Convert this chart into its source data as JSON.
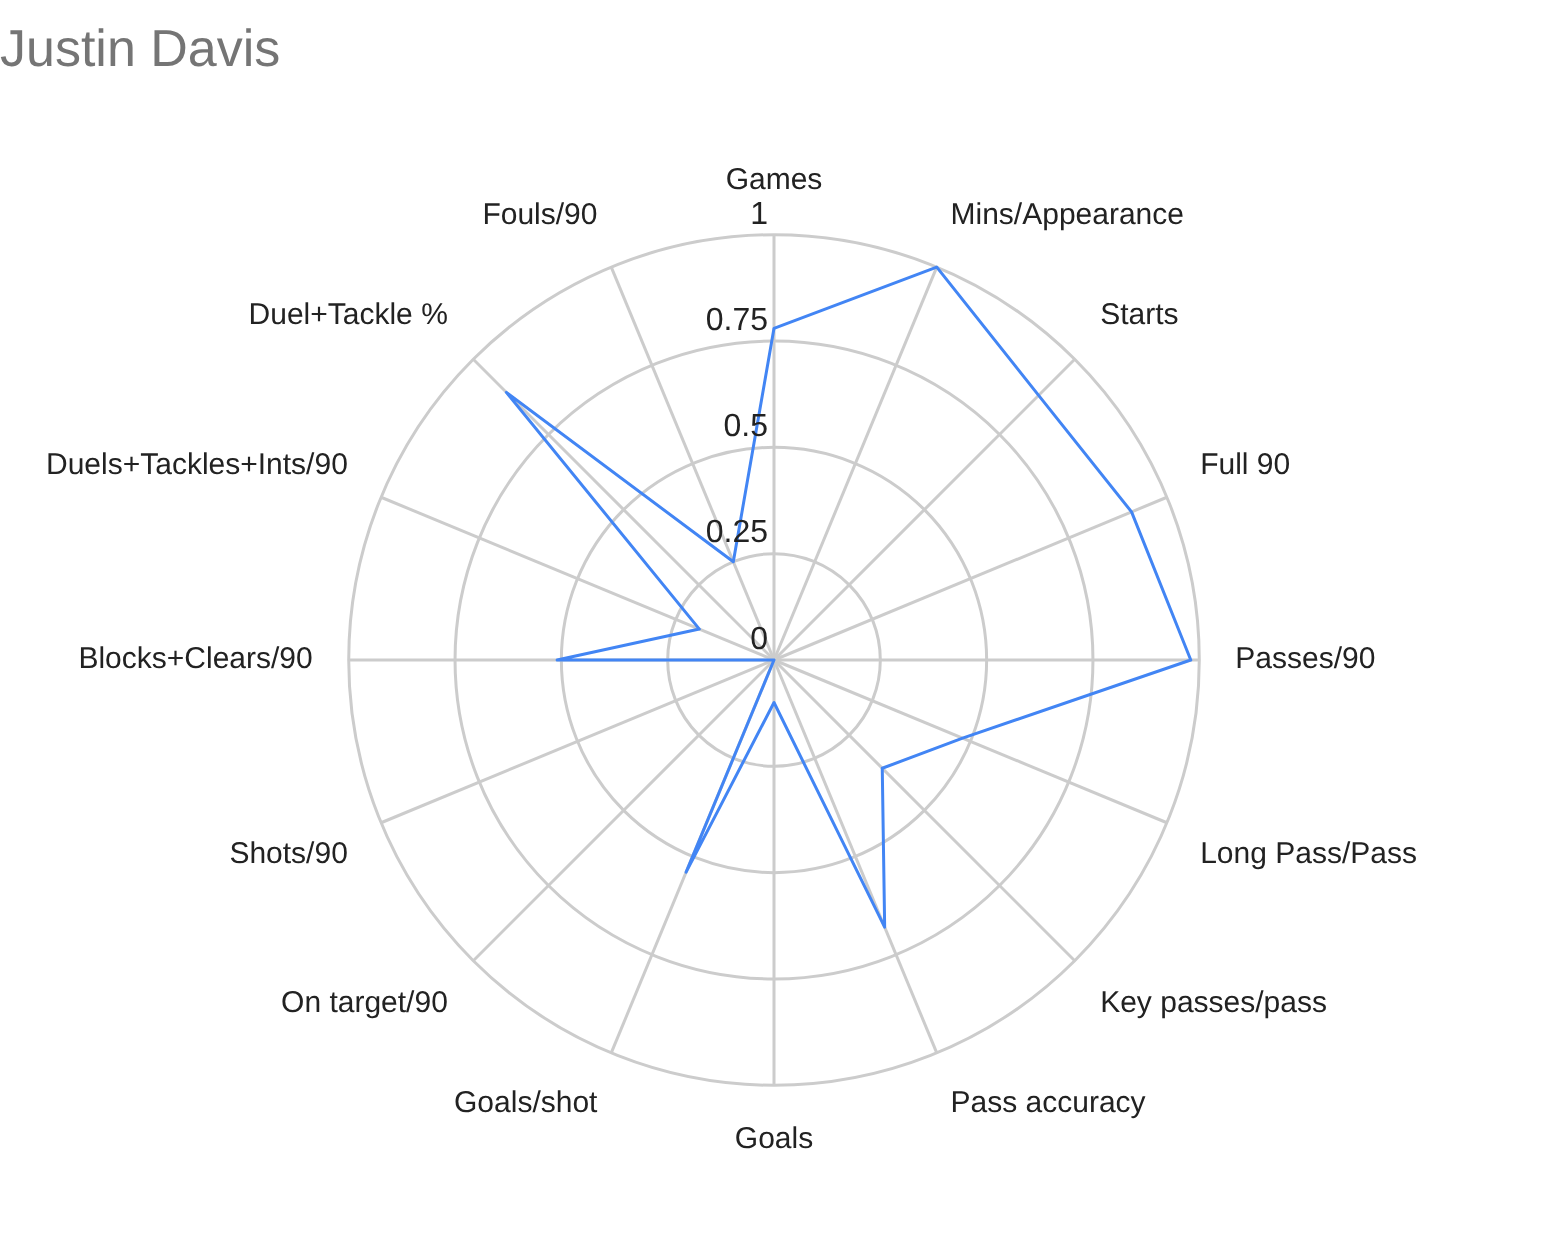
{
  "chart_data": {
    "type": "radar",
    "title": "Justin Davis",
    "categories": [
      "Games",
      "Mins/Appearance",
      "Starts",
      "Full 90",
      "Passes/90",
      "Long Pass/Pass",
      "Key passes/pass",
      "Pass accuracy",
      "Goals",
      "Goals/shot",
      "On target/90",
      "Shots/90",
      "Blocks+Clears/90",
      "Duels+Tackles+Ints/90",
      "Duel+Tackle %",
      "Fouls/90"
    ],
    "series": [
      {
        "color": "#4285f4",
        "values": [
          0.78,
          1.0,
          0.88,
          0.91,
          0.98,
          0.48,
          0.36,
          0.68,
          0.1,
          0.54,
          0,
          0,
          0.51,
          0.19,
          0.89,
          0.25
        ]
      }
    ],
    "ylim": [
      0,
      1
    ],
    "yticks": [
      0,
      0.25,
      0.5,
      0.75,
      1
    ],
    "grid": true,
    "marker": "none",
    "legend": false
  }
}
